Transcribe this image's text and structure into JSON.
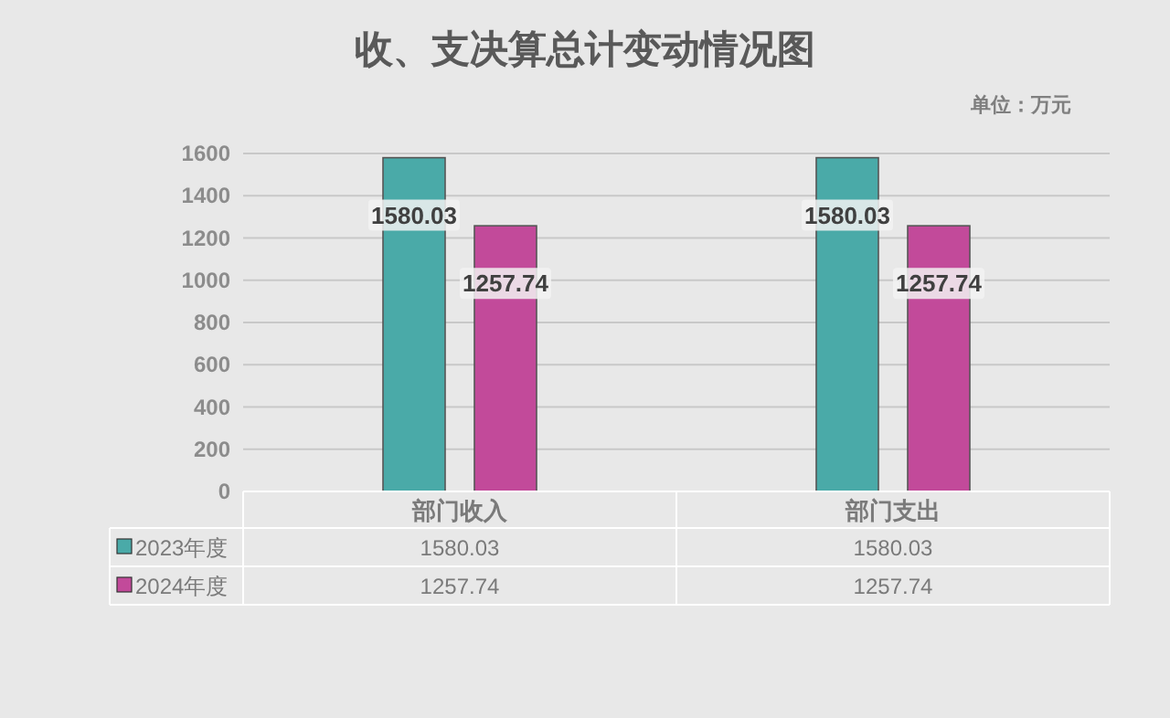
{
  "chart_data": {
    "type": "bar",
    "title": "收、支决算总计变动情况图",
    "annotations": [
      "单位：万元",
      "1580.03",
      "1580.03",
      "1257.74",
      "1257.74"
    ],
    "categories": [
      "部门收入",
      "部门支出"
    ],
    "series": [
      {
        "name": "2023年度",
        "color": "#4aaaa8",
        "values": [
          1580.03,
          1580.03
        ],
        "value_labels": [
          "1580.03",
          "1580.03"
        ]
      },
      {
        "name": "2024年度",
        "color": "#c24a9a",
        "values": [
          1257.74,
          1257.74
        ],
        "value_labels": [
          "1257.74",
          "1257.74"
        ]
      }
    ],
    "ylim": [
      0,
      1600
    ],
    "yticks": [
      0,
      200,
      400,
      600,
      800,
      1000,
      1200,
      1400,
      1600
    ],
    "grid": "y",
    "legend": "bottom"
  }
}
